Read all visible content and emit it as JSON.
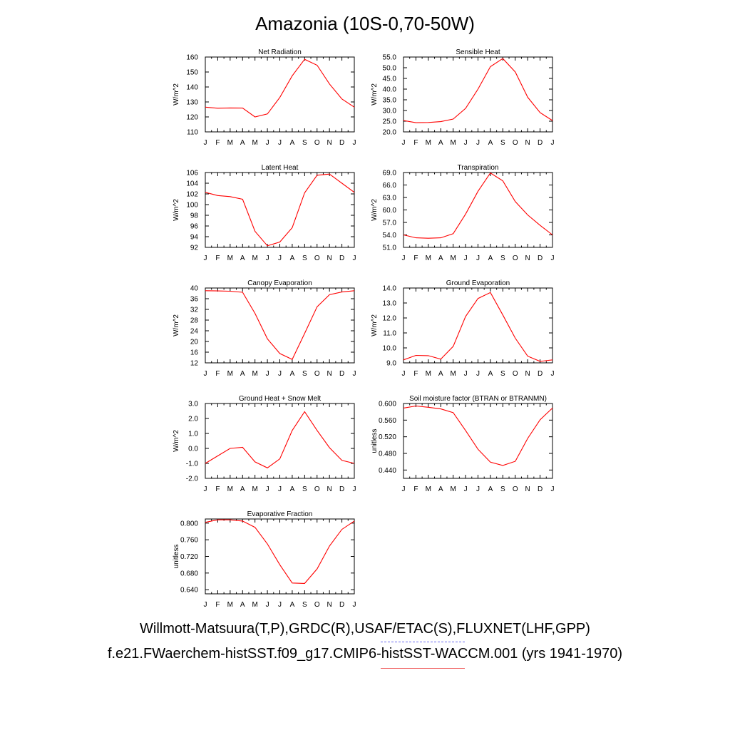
{
  "title": "Amazonia (10S-0,70-50W)",
  "legend": {
    "observations_label": "Willmott-Matsuura(T,P),GRDC(R),USAF/ETAC(S),FLUXNET(LHF,GPP)",
    "model_label": "f.e21.FWaerchem-histSST.f09_g17.CMIP6-histSST-WACCM.001 (yrs 1941-1970)",
    "observations_color": "#6a6af0",
    "model_color": "#f05a5a"
  },
  "chart_data": [
    {
      "type": "line",
      "title": "Net Radiation",
      "ylabel": "W/m^2",
      "categories": [
        "J",
        "F",
        "M",
        "A",
        "M",
        "J",
        "J",
        "A",
        "S",
        "O",
        "N",
        "D",
        "J"
      ],
      "ylim": [
        110,
        160
      ],
      "yticks": [
        "110",
        "120",
        "130",
        "140",
        "150",
        "160"
      ],
      "series": [
        {
          "color": "#ff0000",
          "values": [
            126.5,
            125.8,
            126.0,
            125.9,
            120.0,
            122.0,
            133.0,
            147.5,
            158.5,
            154.5,
            142.0,
            132.0,
            126.5
          ]
        }
      ]
    },
    {
      "type": "line",
      "title": "Sensible Heat",
      "ylabel": "W/m^2",
      "categories": [
        "J",
        "F",
        "M",
        "A",
        "M",
        "J",
        "J",
        "A",
        "S",
        "O",
        "N",
        "D",
        "J"
      ],
      "ylim": [
        20,
        55
      ],
      "yticks": [
        "20.0",
        "25.0",
        "30.0",
        "35.0",
        "40.0",
        "45.0",
        "50.0",
        "55.0"
      ],
      "series": [
        {
          "color": "#ff0000",
          "values": [
            25.3,
            24.3,
            24.4,
            24.8,
            26.0,
            31.0,
            40.0,
            50.5,
            54.3,
            48.0,
            36.2,
            29.0,
            25.3
          ]
        }
      ]
    },
    {
      "type": "line",
      "title": "Latent Heat",
      "ylabel": "W/m^2",
      "categories": [
        "J",
        "F",
        "M",
        "A",
        "M",
        "J",
        "J",
        "A",
        "S",
        "O",
        "N",
        "D",
        "J"
      ],
      "ylim": [
        92,
        106
      ],
      "yticks": [
        "92",
        "94",
        "96",
        "98",
        "100",
        "102",
        "104",
        "106"
      ],
      "series": [
        {
          "color": "#ff0000",
          "values": [
            102.3,
            101.7,
            101.5,
            101.0,
            95.0,
            92.3,
            93.0,
            95.7,
            102.2,
            105.5,
            105.7,
            104.0,
            102.3
          ]
        }
      ]
    },
    {
      "type": "line",
      "title": "Transpiration",
      "ylabel": "W/m^2",
      "categories": [
        "J",
        "F",
        "M",
        "A",
        "M",
        "J",
        "J",
        "A",
        "S",
        "O",
        "N",
        "D",
        "J"
      ],
      "ylim": [
        51,
        69
      ],
      "yticks": [
        "51.0",
        "54.0",
        "57.0",
        "60.0",
        "63.0",
        "66.0",
        "69.0"
      ],
      "series": [
        {
          "color": "#ff0000",
          "values": [
            54.0,
            53.3,
            53.2,
            53.3,
            54.3,
            59.0,
            64.5,
            68.9,
            67.0,
            62.0,
            58.8,
            56.3,
            54.0
          ]
        }
      ]
    },
    {
      "type": "line",
      "title": "Canopy Evaporation",
      "ylabel": "W/m^2",
      "categories": [
        "J",
        "F",
        "M",
        "A",
        "M",
        "J",
        "J",
        "A",
        "S",
        "O",
        "N",
        "D",
        "J"
      ],
      "ylim": [
        12,
        40
      ],
      "yticks": [
        "12",
        "16",
        "20",
        "24",
        "28",
        "32",
        "36",
        "40"
      ],
      "series": [
        {
          "color": "#ff0000",
          "values": [
            39.0,
            38.9,
            38.8,
            38.4,
            30.5,
            21.0,
            15.5,
            13.3,
            23.0,
            33.0,
            37.5,
            38.5,
            39.0
          ]
        }
      ]
    },
    {
      "type": "line",
      "title": "Ground Evaporation",
      "ylabel": "W/m^2",
      "categories": [
        "J",
        "F",
        "M",
        "A",
        "M",
        "J",
        "J",
        "A",
        "S",
        "O",
        "N",
        "D",
        "J"
      ],
      "ylim": [
        9,
        14
      ],
      "yticks": [
        "9.0",
        "10.0",
        "11.0",
        "12.0",
        "13.0",
        "14.0"
      ],
      "series": [
        {
          "color": "#ff0000",
          "values": [
            9.2,
            9.5,
            9.48,
            9.25,
            10.1,
            12.1,
            13.3,
            13.7,
            12.2,
            10.65,
            9.45,
            9.1,
            9.2
          ]
        }
      ]
    },
    {
      "type": "line",
      "title": "Ground Heat + Snow Melt",
      "ylabel": "W/m^2",
      "categories": [
        "J",
        "F",
        "M",
        "A",
        "M",
        "J",
        "J",
        "A",
        "S",
        "O",
        "N",
        "D",
        "J"
      ],
      "ylim": [
        -2,
        3
      ],
      "yticks": [
        "-2.0",
        "-1.0",
        "0.0",
        "1.0",
        "2.0",
        "3.0"
      ],
      "series": [
        {
          "color": "#ff0000",
          "values": [
            -1.0,
            -0.5,
            0.0,
            0.07,
            -0.9,
            -1.3,
            -0.7,
            1.2,
            2.45,
            1.2,
            0.05,
            -0.8,
            -1.0
          ]
        }
      ]
    },
    {
      "type": "line",
      "title": "Soil moisture factor (BTRAN or BTRANMN)",
      "ylabel": "unitless",
      "categories": [
        "J",
        "F",
        "M",
        "A",
        "M",
        "J",
        "J",
        "A",
        "S",
        "O",
        "N",
        "D",
        "J"
      ],
      "ylim": [
        0.42,
        0.6
      ],
      "yticks": [
        "0.440",
        "0.480",
        "0.520",
        "0.560",
        "0.600"
      ],
      "series": [
        {
          "color": "#ff0000",
          "values": [
            0.589,
            0.594,
            0.591,
            0.587,
            0.578,
            0.535,
            0.49,
            0.459,
            0.451,
            0.461,
            0.516,
            0.561,
            0.589
          ]
        }
      ]
    },
    {
      "type": "line",
      "title": "Evaporative Fraction",
      "ylabel": "unitless",
      "categories": [
        "J",
        "F",
        "M",
        "A",
        "M",
        "J",
        "J",
        "A",
        "S",
        "O",
        "N",
        "D",
        "J"
      ],
      "ylim": [
        0.63,
        0.81
      ],
      "yticks": [
        "0.640",
        "0.680",
        "0.720",
        "0.760",
        "0.800"
      ],
      "series": [
        {
          "color": "#ff0000",
          "values": [
            0.802,
            0.808,
            0.808,
            0.805,
            0.79,
            0.75,
            0.7,
            0.656,
            0.655,
            0.69,
            0.745,
            0.785,
            0.805
          ]
        }
      ]
    }
  ]
}
